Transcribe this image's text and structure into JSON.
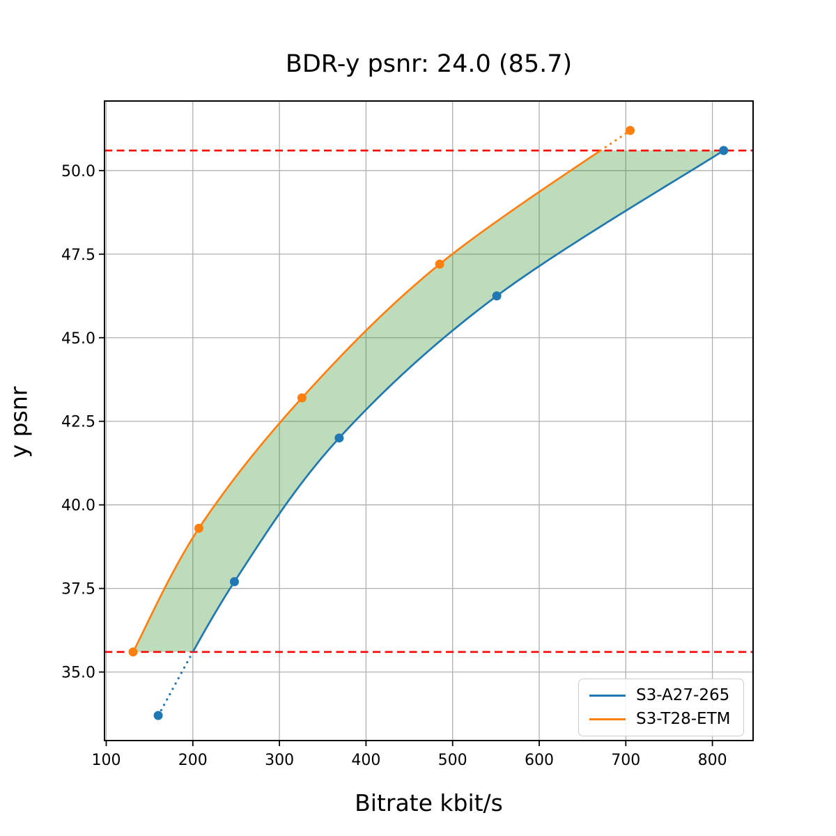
{
  "chart_data": {
    "type": "line",
    "title": "BDR-y psnr: 24.0 (85.7)",
    "xlabel": "Bitrate kbit/s",
    "ylabel": "y psnr",
    "xlim": [
      98,
      847
    ],
    "ylim": [
      32.95,
      52.08
    ],
    "grid": true,
    "x_ticks": [
      "100",
      "200",
      "300",
      "400",
      "500",
      "600",
      "700",
      "800"
    ],
    "y_ticks": [
      "35.0",
      "37.5",
      "40.0",
      "42.5",
      "45.0",
      "47.5",
      "50.0"
    ],
    "series": [
      {
        "name": "S3-A27-265",
        "color": "#1f77b4",
        "x": [
          160,
          248,
          369,
          551,
          813
        ],
        "y": [
          33.7,
          37.7,
          42.0,
          46.25,
          50.6
        ]
      },
      {
        "name": "S3-T28-ETM",
        "color": "#ff7f0e",
        "x": [
          131,
          207,
          326,
          485,
          705
        ],
        "y": [
          35.6,
          39.3,
          43.2,
          47.2,
          51.2
        ]
      }
    ],
    "hlines": [
      {
        "y": 50.6,
        "color": "#ff0000",
        "style": "dashed"
      },
      {
        "y": 35.6,
        "color": "#ff0000",
        "style": "dashed"
      }
    ],
    "shaded_region": {
      "between": [
        "S3-T28-ETM",
        "S3-A27-265"
      ],
      "y_range": [
        35.6,
        50.6
      ],
      "color": "#228b22",
      "alpha": 0.3
    },
    "legend": {
      "position": "lower right",
      "entries": [
        "S3-A27-265",
        "S3-T28-ETM"
      ]
    }
  },
  "colors": {
    "grid": "#b0b0b0",
    "spine": "#000000",
    "background": "#ffffff",
    "tick_text": "#000000"
  }
}
